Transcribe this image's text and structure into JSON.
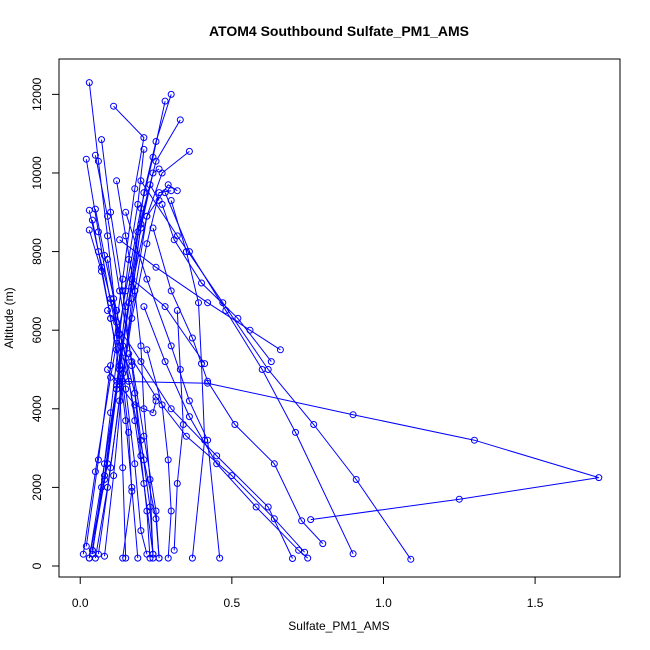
{
  "chart_data": {
    "type": "line",
    "title": "ATOM4 Southbound Sulfate_PM1_AMS",
    "xlabel": "Sulfate_PM1_AMS",
    "ylabel": "Altitude (m)",
    "xlim": [
      -0.07,
      1.78
    ],
    "ylim": [
      -280,
      12900
    ],
    "xticks": [
      0.0,
      0.5,
      1.0,
      1.5
    ],
    "xtick_labels": [
      "0.0",
      "0.5",
      "1.0",
      "1.5"
    ],
    "yticks": [
      0,
      2000,
      4000,
      6000,
      8000,
      10000,
      12000
    ],
    "ytick_labels": [
      "0",
      "2000",
      "4000",
      "6000",
      "8000",
      "10000",
      "12000"
    ],
    "grid": false,
    "legend": "none",
    "series_color": "#0000ff",
    "series": [
      {
        "points": [
          [
            0.03,
            12300
          ],
          [
            0.06,
            10300
          ],
          [
            0.09,
            8400
          ],
          [
            0.12,
            6200
          ],
          [
            0.15,
            4500
          ],
          [
            0.18,
            2600
          ],
          [
            0.2,
            900
          ],
          [
            0.22,
            300
          ]
        ]
      },
      {
        "points": [
          [
            0.01,
            300
          ],
          [
            0.05,
            2400
          ],
          [
            0.1,
            4800
          ],
          [
            0.15,
            7000
          ],
          [
            0.2,
            9100
          ],
          [
            0.24,
            10400
          ],
          [
            0.28,
            11830
          ]
        ]
      },
      {
        "points": [
          [
            0.02,
            10350
          ],
          [
            0.06,
            8500
          ],
          [
            0.1,
            6700
          ],
          [
            0.16,
            4700
          ],
          [
            0.21,
            2700
          ],
          [
            0.25,
            1200
          ],
          [
            0.26,
            200
          ]
        ]
      },
      {
        "points": [
          [
            0.03,
            200
          ],
          [
            0.08,
            2600
          ],
          [
            0.13,
            5100
          ],
          [
            0.17,
            7300
          ],
          [
            0.21,
            9500
          ],
          [
            0.25,
            10800
          ],
          [
            0.3,
            12000
          ]
        ]
      },
      {
        "points": [
          [
            0.03,
            9050
          ],
          [
            0.06,
            8000
          ],
          [
            0.1,
            6800
          ],
          [
            0.14,
            5600
          ],
          [
            0.18,
            4400
          ],
          [
            0.2,
            2800
          ],
          [
            0.22,
            1400
          ],
          [
            0.23,
            200
          ]
        ]
      },
      {
        "points": [
          [
            0.04,
            300
          ],
          [
            0.07,
            2000
          ],
          [
            0.1,
            3900
          ],
          [
            0.13,
            5900
          ],
          [
            0.16,
            7800
          ],
          [
            0.19,
            9200
          ],
          [
            0.21,
            10600
          ]
        ]
      },
      {
        "points": [
          [
            0.05,
            9080
          ],
          [
            0.08,
            7900
          ],
          [
            0.12,
            6500
          ],
          [
            0.15,
            5300
          ],
          [
            0.18,
            3700
          ],
          [
            0.21,
            2100
          ],
          [
            0.24,
            300
          ]
        ]
      },
      {
        "points": [
          [
            0.04,
            400
          ],
          [
            0.08,
            2300
          ],
          [
            0.12,
            4600
          ],
          [
            0.15,
            6600
          ],
          [
            0.19,
            8500
          ],
          [
            0.25,
            10300
          ],
          [
            0.33,
            11350
          ]
        ]
      },
      {
        "points": [
          [
            0.05,
            10450
          ],
          [
            0.09,
            8900
          ],
          [
            0.13,
            7000
          ],
          [
            0.17,
            5200
          ],
          [
            0.21,
            3300
          ],
          [
            0.25,
            1400
          ],
          [
            0.26,
            200
          ]
        ]
      },
      {
        "points": [
          [
            0.02,
            500
          ],
          [
            0.06,
            2700
          ],
          [
            0.1,
            5100
          ],
          [
            0.14,
            7300
          ],
          [
            0.18,
            9600
          ],
          [
            0.21,
            10900
          ],
          [
            0.11,
            11700
          ]
        ]
      },
      {
        "points": [
          [
            0.07,
            10850
          ],
          [
            0.1,
            9000
          ],
          [
            0.14,
            7000
          ],
          [
            0.17,
            5100
          ],
          [
            0.2,
            3200
          ],
          [
            0.23,
            1500
          ],
          [
            0.24,
            300
          ]
        ]
      },
      {
        "points": [
          [
            0.03,
            200
          ],
          [
            0.08,
            2200
          ],
          [
            0.12,
            4500
          ],
          [
            0.16,
            6700
          ],
          [
            0.2,
            8600
          ],
          [
            0.24,
            10000
          ],
          [
            0.26,
            10100
          ]
        ]
      },
      {
        "points": [
          [
            0.04,
            8800
          ],
          [
            0.07,
            7600
          ],
          [
            0.1,
            6300
          ],
          [
            0.12,
            5500
          ],
          [
            0.13,
            4700
          ],
          [
            0.14,
            2500
          ],
          [
            0.15,
            200
          ]
        ]
      },
      {
        "points": [
          [
            0.06,
            300
          ],
          [
            0.1,
            2500
          ],
          [
            0.14,
            4900
          ],
          [
            0.18,
            7000
          ],
          [
            0.22,
            8900
          ],
          [
            0.27,
            10000
          ],
          [
            0.36,
            10550
          ]
        ]
      },
      {
        "points": [
          [
            0.12,
            9800
          ],
          [
            0.15,
            8400
          ],
          [
            0.18,
            7000
          ],
          [
            0.2,
            5600
          ],
          [
            0.21,
            4000
          ],
          [
            0.23,
            2200
          ],
          [
            0.24,
            200
          ]
        ]
      },
      {
        "points": [
          [
            0.05,
            200
          ],
          [
            0.09,
            2000
          ],
          [
            0.13,
            4200
          ],
          [
            0.17,
            6300
          ],
          [
            0.22,
            8200
          ],
          [
            0.26,
            9500
          ],
          [
            0.3,
            9550
          ]
        ]
      },
      {
        "points": [
          [
            0.03,
            8550
          ],
          [
            0.07,
            7500
          ],
          [
            0.1,
            6300
          ],
          [
            0.13,
            5000
          ],
          [
            0.15,
            3700
          ],
          [
            0.17,
            2000
          ],
          [
            0.19,
            200
          ]
        ]
      },
      {
        "points": [
          [
            0.08,
            250
          ],
          [
            0.11,
            2300
          ],
          [
            0.14,
            4700
          ],
          [
            0.17,
            6800
          ],
          [
            0.2,
            8700
          ],
          [
            0.23,
            9700
          ],
          [
            0.26,
            9300
          ]
        ]
      },
      {
        "points": [
          [
            0.09,
            7800
          ],
          [
            0.11,
            6800
          ],
          [
            0.12,
            5800
          ],
          [
            0.14,
            4700
          ],
          [
            0.16,
            3400
          ],
          [
            0.17,
            1900
          ],
          [
            0.14,
            200
          ]
        ]
      },
      {
        "points": [
          [
            0.04,
            400
          ],
          [
            0.09,
            2600
          ],
          [
            0.13,
            5000
          ],
          [
            0.17,
            7100
          ],
          [
            0.22,
            8900
          ],
          [
            0.29,
            9700
          ],
          [
            0.32,
            9550
          ]
        ]
      },
      {
        "points": [
          [
            0.27,
            9200
          ],
          [
            0.31,
            8300
          ],
          [
            0.4,
            7200
          ],
          [
            0.52,
            6300
          ],
          [
            0.63,
            5200
          ]
        ]
      },
      {
        "points": [
          [
            0.13,
            8300
          ],
          [
            0.25,
            7600
          ],
          [
            0.42,
            6700
          ],
          [
            0.56,
            6000
          ],
          [
            0.66,
            5500
          ]
        ]
      },
      {
        "points": [
          [
            0.24,
            8600
          ],
          [
            0.3,
            7000
          ],
          [
            0.37,
            5800
          ],
          [
            0.42,
            4700
          ],
          [
            0.51,
            3600
          ],
          [
            0.64,
            2600
          ],
          [
            0.73,
            1150
          ],
          [
            0.8,
            570
          ]
        ]
      },
      {
        "points": [
          [
            0.12,
            4700
          ],
          [
            0.42,
            4650
          ],
          [
            0.9,
            3850
          ],
          [
            1.3,
            3200
          ],
          [
            1.71,
            2250
          ],
          [
            1.25,
            1700
          ],
          [
            0.76,
            1180
          ]
        ]
      },
      {
        "points": [
          [
            0.15,
            9000
          ],
          [
            0.22,
            7300
          ],
          [
            0.3,
            5600
          ],
          [
            0.36,
            4200
          ],
          [
            0.42,
            3200
          ],
          [
            0.46,
            200
          ]
        ]
      },
      {
        "points": [
          [
            0.28,
            9500
          ],
          [
            0.36,
            8000
          ],
          [
            0.48,
            6500
          ],
          [
            0.6,
            5000
          ],
          [
            0.71,
            3400
          ],
          [
            0.9,
            310
          ]
        ]
      },
      {
        "points": [
          [
            0.21,
            6600
          ],
          [
            0.28,
            5200
          ],
          [
            0.36,
            3800
          ],
          [
            0.45,
            2600
          ],
          [
            0.58,
            1500
          ],
          [
            0.72,
            400
          ],
          [
            0.75,
            200
          ]
        ]
      },
      {
        "points": [
          [
            0.2,
            9800
          ],
          [
            0.32,
            8400
          ],
          [
            0.47,
            6700
          ],
          [
            0.62,
            5000
          ],
          [
            0.77,
            3600
          ],
          [
            0.91,
            2200
          ],
          [
            1.09,
            170
          ]
        ]
      },
      {
        "points": [
          [
            0.09,
            6500
          ],
          [
            0.2,
            5200
          ],
          [
            0.3,
            4000
          ],
          [
            0.45,
            2800
          ],
          [
            0.62,
            1500
          ],
          [
            0.7,
            190
          ]
        ]
      },
      {
        "points": [
          [
            0.16,
            5400
          ],
          [
            0.25,
            4300
          ],
          [
            0.35,
            3300
          ],
          [
            0.5,
            2300
          ],
          [
            0.64,
            1200
          ],
          [
            0.74,
            350
          ]
        ]
      },
      {
        "points": [
          [
            0.3,
            9300
          ],
          [
            0.35,
            8000
          ],
          [
            0.39,
            6700
          ],
          [
            0.4,
            5150
          ],
          [
            0.41,
            3200
          ],
          [
            0.37,
            200
          ]
        ]
      },
      {
        "points": [
          [
            0.32,
            6500
          ],
          [
            0.33,
            5000
          ],
          [
            0.34,
            3600
          ],
          [
            0.32,
            2100
          ],
          [
            0.31,
            400
          ]
        ]
      },
      {
        "points": [
          [
            0.22,
            5500
          ],
          [
            0.27,
            4100
          ],
          [
            0.29,
            2700
          ],
          [
            0.3,
            1400
          ],
          [
            0.29,
            200
          ]
        ]
      },
      {
        "points": [
          [
            0.17,
            7300
          ],
          [
            0.28,
            6600
          ],
          [
            0.41,
            5150
          ]
        ]
      },
      {
        "points": [
          [
            0.09,
            5000
          ],
          [
            0.18,
            4100
          ],
          [
            0.24,
            3900
          ],
          [
            0.25,
            4200
          ]
        ]
      }
    ]
  }
}
